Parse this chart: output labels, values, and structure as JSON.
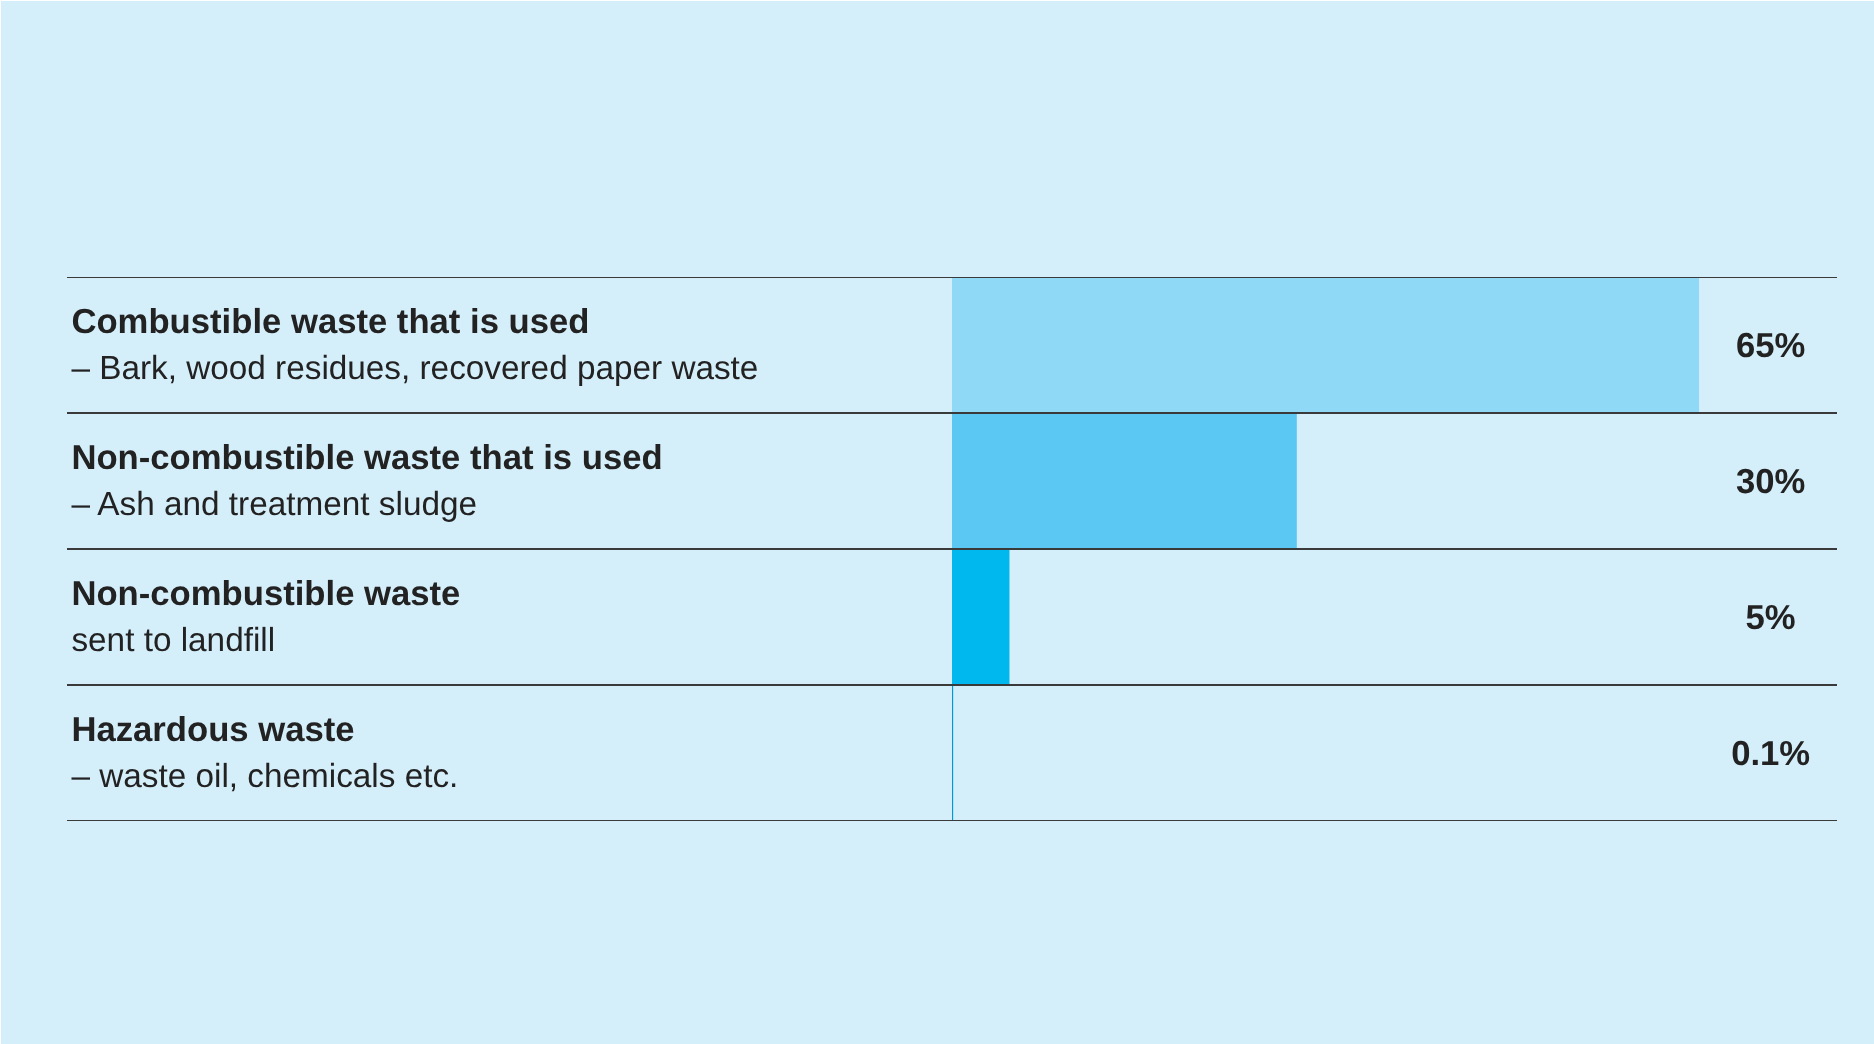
{
  "chart_data": {
    "type": "bar",
    "orientation": "horizontal",
    "tick_labels": false,
    "categories": [
      "Combustible waste that is used\n– Bark, wood residues, recovered paper waste",
      "Non-combustible waste that is used\n– Ash and treatment sludge",
      "Non-combustible waste\nsent to landfill",
      "Hazardous waste\n– waste oil, chemicals etc."
    ],
    "values": [
      65,
      30,
      5,
      0.1
    ],
    "colors": [
      "#90d9f6",
      "#5ac8f2",
      "#00b7ee",
      "#0098d8"
    ],
    "value_labels": [
      "65%",
      "30%",
      "5%",
      "0.1%"
    ],
    "xlim": [
      0,
      77
    ]
  }
}
